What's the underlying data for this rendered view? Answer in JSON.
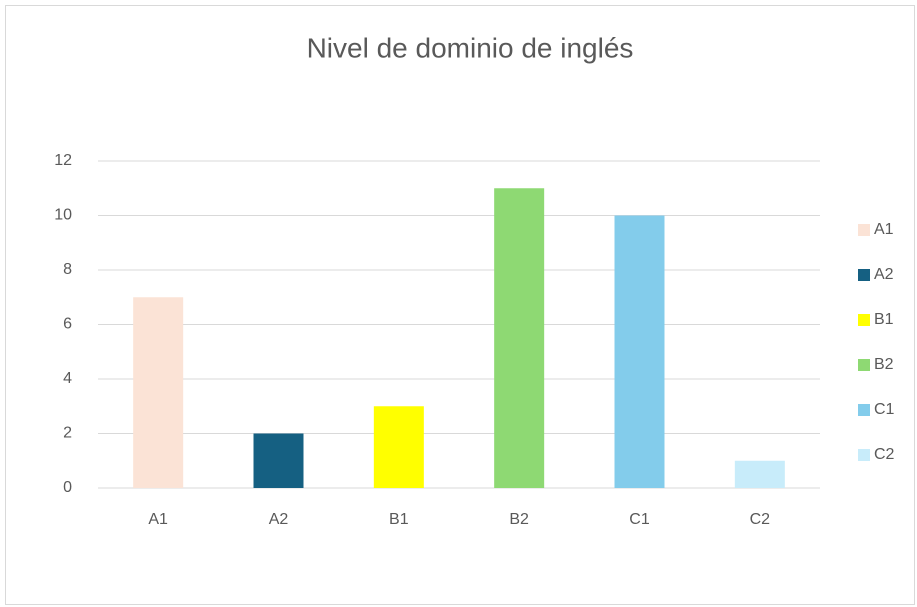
{
  "chart_data": {
    "type": "bar",
    "title": "Nivel de dominio de inglés",
    "categories": [
      "A1",
      "A2",
      "B1",
      "B2",
      "C1",
      "C2"
    ],
    "values": [
      7,
      2,
      3,
      11,
      10,
      1
    ],
    "colors": [
      "#fbe3d6",
      "#156082",
      "#ffff00",
      "#8ed973",
      "#83cceb",
      "#c8ecfa"
    ],
    "ylim": [
      0,
      12
    ],
    "yticks": [
      0,
      2,
      4,
      6,
      8,
      10,
      12
    ],
    "grid": true,
    "legend": "right"
  }
}
